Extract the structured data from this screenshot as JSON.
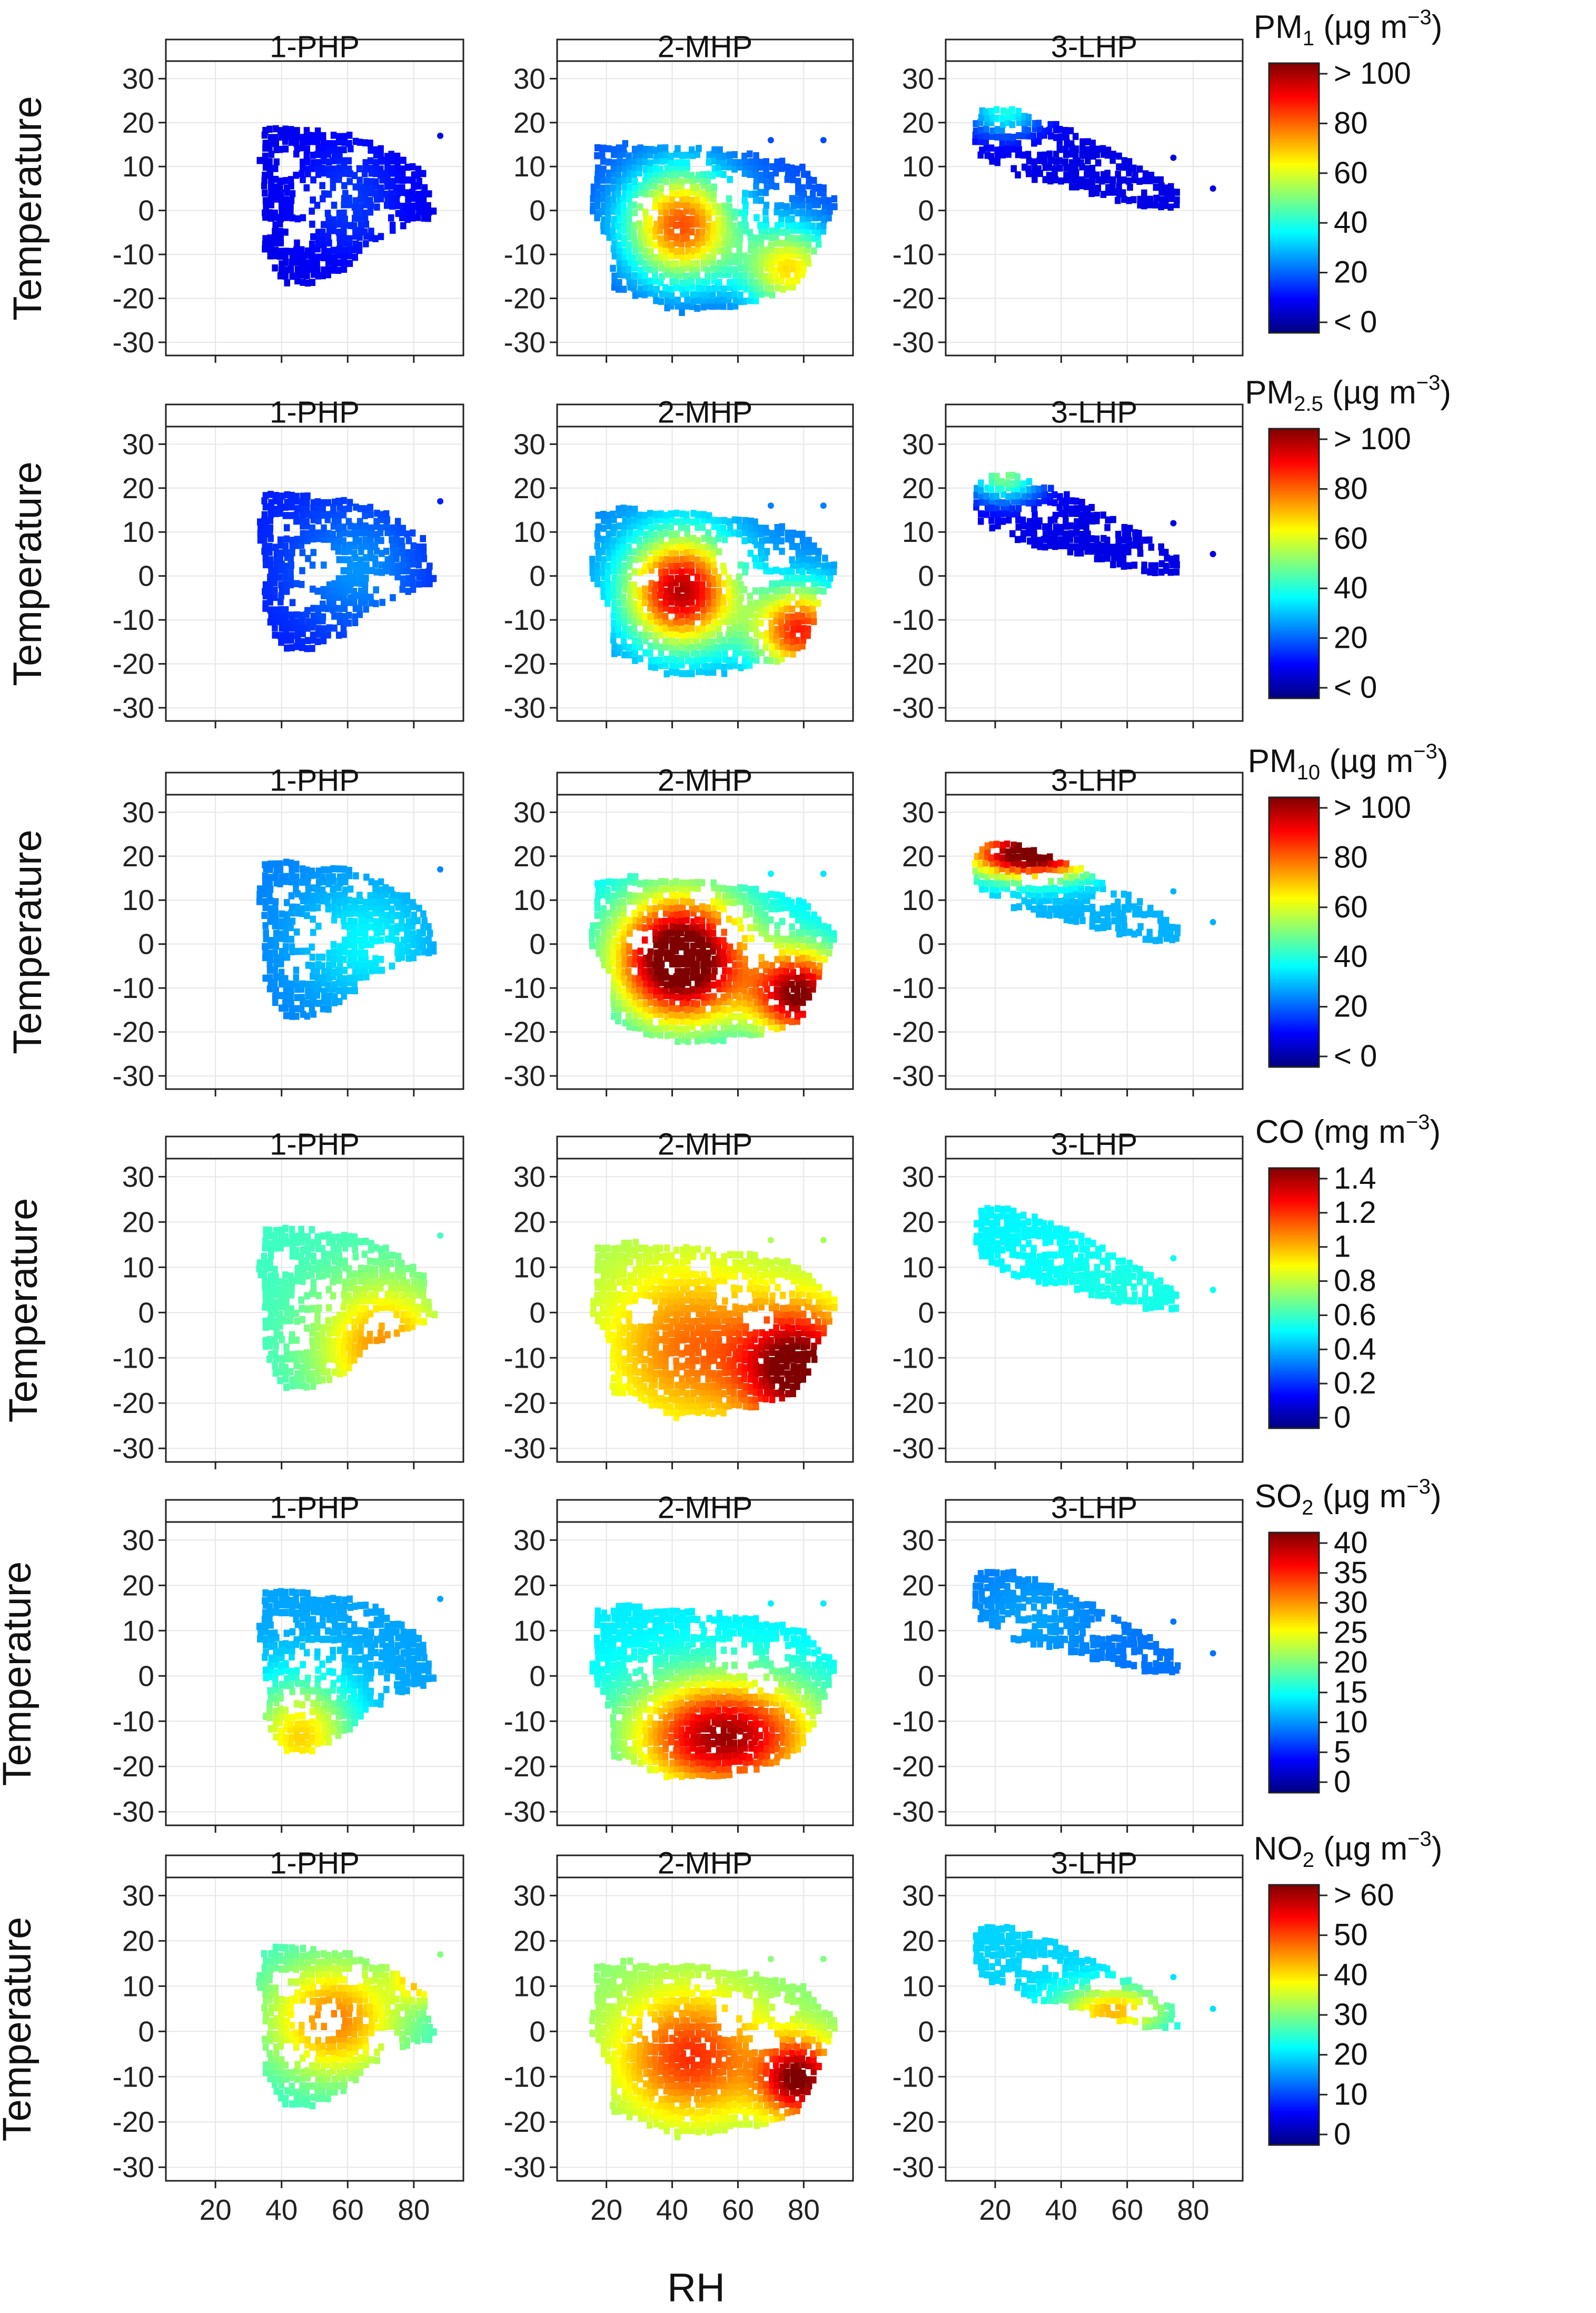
{
  "figure": {
    "xlabel": "RH",
    "ylabel": "Temperature"
  },
  "colors": {
    "jet": [
      "#7f0000",
      "#ff0000",
      "#ff7f00",
      "#ffff00",
      "#7fff7f",
      "#00ffff",
      "#007fff",
      "#0000ff",
      "#00007f"
    ],
    "grid": "#e6e6e6",
    "frame": "#222222",
    "strip_bg": "#ffffff"
  },
  "panels": [
    "1-PHP",
    "2-MHP",
    "3-LHP"
  ],
  "rows": [
    {
      "title_main": "PM",
      "title_sub": "1",
      "title_unit": " (µg m",
      "title_sup": "−3",
      "title_close": ")",
      "ticks": [
        "> 100",
        "80",
        "60",
        "40",
        "20",
        "< 0"
      ]
    },
    {
      "title_main": "PM",
      "title_sub": "2.5",
      "title_unit": " (µg m",
      "title_sup": "−3",
      "title_close": ")",
      "ticks": [
        "> 100",
        "80",
        "60",
        "40",
        "20",
        "< 0"
      ]
    },
    {
      "title_main": "PM",
      "title_sub": "10",
      "title_unit": " (µg m",
      "title_sup": "−3",
      "title_close": ")",
      "ticks": [
        "> 100",
        "80",
        "60",
        "40",
        "20",
        "< 0"
      ]
    },
    {
      "title_main": "CO",
      "title_sub": "",
      "title_unit": " (mg m",
      "title_sup": "−3",
      "title_close": ")",
      "ticks": [
        "1.4",
        "1.2",
        "1",
        "0.8",
        "0.6",
        "0.4",
        "0.2",
        "0"
      ]
    },
    {
      "title_main": "SO",
      "title_sub": "2",
      "title_unit": " (µg m",
      "title_sup": "−3",
      "title_close": ")",
      "ticks": [
        "40",
        "35",
        "30",
        "25",
        "20",
        "15",
        "10",
        "5",
        "0"
      ]
    },
    {
      "title_main": "NO",
      "title_sub": "2",
      "title_unit": " (µg m",
      "title_sup": "−3",
      "title_close": ")",
      "ticks": [
        "> 60",
        "50",
        "40",
        "30",
        "20",
        "10",
        "0"
      ]
    }
  ],
  "chart_data": {
    "type": "heatmap",
    "description_vars": {
      "x": "RH",
      "y": "Temperature"
    },
    "xlim": [
      5,
      95
    ],
    "ylim": [
      -33,
      34
    ],
    "x_ticks": [
      "20",
      "40",
      "60",
      "80"
    ],
    "y_ticks": [
      "30",
      "20",
      "10",
      "0",
      "-10",
      "-20",
      "-30"
    ],
    "series": [
      {
        "row": 0,
        "name": "PM1",
        "clim": [
          0,
          100
        ],
        "panels": [
          {
            "panel": "1-PHP",
            "base": 10,
            "peaks": [
              [
                60,
                2,
                12,
                10,
                8
              ]
            ]
          },
          {
            "panel": "2-MHP",
            "base": 20,
            "peaks": [
              [
                42,
                -4,
                12,
                9,
                60
              ],
              [
                75,
                -14,
                10,
                7,
                45
              ]
            ]
          },
          {
            "panel": "3-LHP",
            "base": 10,
            "peaks": [
              [
                22,
                22,
                8,
                4,
                30
              ]
            ]
          }
        ]
      },
      {
        "row": 1,
        "name": "PM2.5",
        "clim": [
          0,
          100
        ],
        "panels": [
          {
            "panel": "1-PHP",
            "base": 15,
            "peaks": [
              [
                62,
                1,
                14,
                10,
                12
              ]
            ]
          },
          {
            "panel": "2-MHP",
            "base": 25,
            "peaks": [
              [
                42,
                -4,
                12,
                9,
                70
              ],
              [
                78,
                -13,
                10,
                7,
                60
              ]
            ]
          },
          {
            "panel": "3-LHP",
            "base": 10,
            "peaks": [
              [
                22,
                22,
                8,
                4,
                40
              ]
            ]
          }
        ]
      },
      {
        "row": 2,
        "name": "PM10",
        "clim": [
          0,
          100
        ],
        "panels": [
          {
            "panel": "1-PHP",
            "base": 25,
            "peaks": [
              [
                65,
                0,
                15,
                10,
                12
              ]
            ]
          },
          {
            "panel": "2-MHP",
            "base": 35,
            "peaks": [
              [
                42,
                -4,
                14,
                10,
                80
              ],
              [
                78,
                -12,
                10,
                7,
                65
              ]
            ]
          },
          {
            "panel": "3-LHP",
            "base": 30,
            "peaks": [
              [
                30,
                20,
                14,
                4,
                80
              ]
            ]
          }
        ]
      },
      {
        "row": 3,
        "name": "CO",
        "clim": [
          0,
          1.5
        ],
        "panels": [
          {
            "panel": "1-PHP",
            "base": 0.65,
            "peaks": [
              [
                70,
                -8,
                14,
                10,
                0.45
              ]
            ]
          },
          {
            "panel": "2-MHP",
            "base": 0.8,
            "peaks": [
              [
                78,
                -13,
                12,
                9,
                0.75
              ],
              [
                45,
                -8,
                18,
                12,
                0.35
              ]
            ]
          },
          {
            "panel": "3-LHP",
            "base": 0.55,
            "peaks": [
              [
                60,
                5,
                20,
                8,
                0.05
              ]
            ]
          }
        ]
      },
      {
        "row": 4,
        "name": "SO2",
        "clim": [
          0,
          42
        ],
        "panels": [
          {
            "panel": "1-PHP",
            "base": 12,
            "peaks": [
              [
                45,
                -14,
                12,
                9,
                16
              ]
            ]
          },
          {
            "panel": "2-MHP",
            "base": 15,
            "peaks": [
              [
                55,
                -14,
                20,
                9,
                26
              ]
            ]
          },
          {
            "panel": "3-LHP",
            "base": 10,
            "peaks": [
              [
                30,
                12,
                14,
                8,
                2
              ]
            ]
          }
        ]
      },
      {
        "row": 5,
        "name": "NO2",
        "clim": [
          0,
          60
        ],
        "panels": [
          {
            "panel": "1-PHP",
            "base": 25,
            "peaks": [
              [
                55,
                2,
                14,
                9,
                20
              ],
              [
                82,
                12,
                6,
                4,
                18
              ]
            ]
          },
          {
            "panel": "2-MHP",
            "base": 30,
            "peaks": [
              [
                45,
                -6,
                16,
                10,
                20
              ],
              [
                78,
                -11,
                8,
                6,
                30
              ]
            ]
          },
          {
            "panel": "3-LHP",
            "base": 20,
            "peaks": [
              [
                55,
                4,
                12,
                4,
                22
              ]
            ]
          }
        ]
      }
    ]
  }
}
